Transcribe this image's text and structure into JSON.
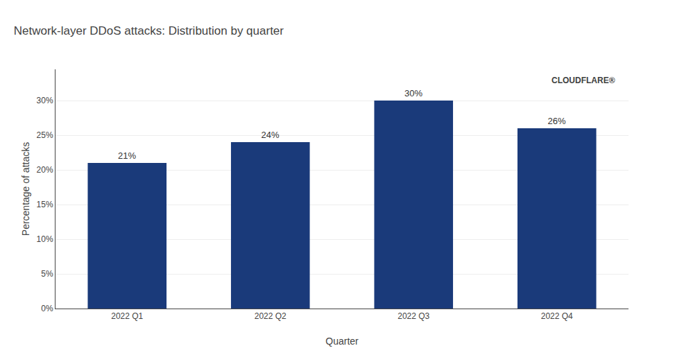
{
  "chart_data": {
    "type": "bar",
    "title": "Network-layer DDoS attacks: Distribution by quarter",
    "xlabel": "Quarter",
    "ylabel": "Percentage of attacks",
    "categories": [
      "2022 Q1",
      "2022 Q2",
      "2022 Q3",
      "2022 Q4"
    ],
    "values": [
      0.21,
      0.24,
      0.3,
      0.26
    ],
    "value_labels": [
      "21%",
      "24%",
      "30%",
      "26%"
    ],
    "data_labels": true,
    "color": "#1a3a7a",
    "ylim": [
      0,
      0.345
    ],
    "yticks": [
      {
        "value": 0.0,
        "label": "0%"
      },
      {
        "value": 0.05,
        "label": "5%"
      },
      {
        "value": 0.1,
        "label": "10%"
      },
      {
        "value": 0.15,
        "label": "15%"
      },
      {
        "value": 0.2,
        "label": "20%"
      },
      {
        "value": 0.25,
        "label": "25%"
      },
      {
        "value": 0.3,
        "label": "30%"
      }
    ],
    "grid": true,
    "annotations": [
      "CLOUDFLARE®"
    ]
  }
}
